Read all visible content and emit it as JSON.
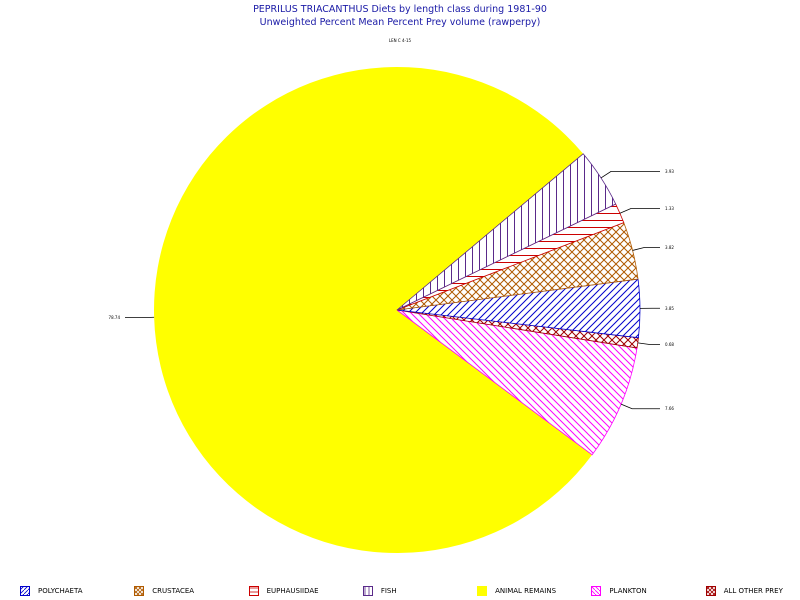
{
  "chart_data": {
    "type": "pie",
    "title": "PEPRILUS TRIACANTHUS Diets by length class during 1981-90",
    "subtitle": "Unweighted Percent Mean Percent Prey  volume (rawperpy)",
    "length_class_label": "LEN C 4-15",
    "slices": [
      {
        "name": "ANIMAL REMAINS",
        "value": 78.74,
        "label": "78.74",
        "color": "#ffff00",
        "pattern": "solid"
      },
      {
        "name": "PLANKTON",
        "value": 7.66,
        "label": "7.66",
        "color": "#ff00ff",
        "pattern": "hatch-down"
      },
      {
        "name": "ALL OTHER PREY",
        "value": 0.68,
        "label": "0.68",
        "color": "#a00000",
        "pattern": "crosshatch"
      },
      {
        "name": "POLYCHAETA",
        "value": 3.85,
        "label": "3.85",
        "color": "#0000cc",
        "pattern": "hatch-up"
      },
      {
        "name": "CRUSTACEA",
        "value": 3.82,
        "label": "3.82",
        "color": "#b05a00",
        "pattern": "crosshatch"
      },
      {
        "name": "EUPHAUSIIDAE",
        "value": 1.33,
        "label": "1.33",
        "color": "#cc0000",
        "pattern": "horizontal"
      },
      {
        "name": "FISH",
        "value": 3.93,
        "label": "3.93",
        "color": "#5a2a8a",
        "pattern": "vertical"
      }
    ],
    "legend_position": "bottom"
  },
  "legend": [
    {
      "label": "POLYCHAETA",
      "color": "#0000cc",
      "pattern": "hatch-up"
    },
    {
      "label": "CRUSTACEA",
      "color": "#b05a00",
      "pattern": "crosshatch"
    },
    {
      "label": "EUPHAUSIIDAE",
      "color": "#cc0000",
      "pattern": "horizontal"
    },
    {
      "label": "FISH",
      "color": "#5a2a8a",
      "pattern": "vertical"
    },
    {
      "label": "ANIMAL REMAINS",
      "color": "#ffff00",
      "pattern": "solid"
    },
    {
      "label": "PLANKTON",
      "color": "#ff00ff",
      "pattern": "hatch-down"
    },
    {
      "label": "ALL OTHER PREY",
      "color": "#a00000",
      "pattern": "crosshatch"
    }
  ]
}
